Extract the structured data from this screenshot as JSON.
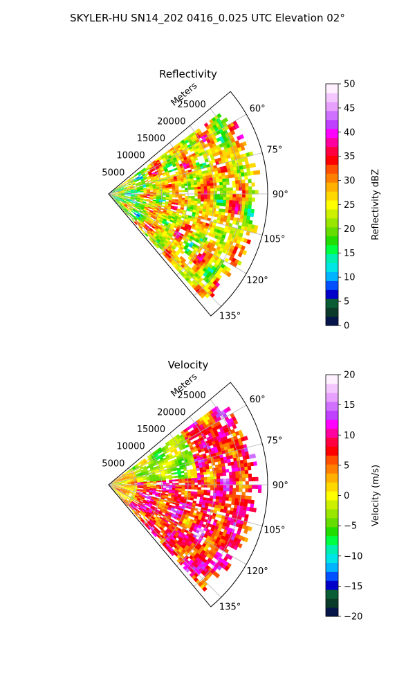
{
  "figure": {
    "title": "SKYLER-HU  SN14_202  0416_0.025 UTC Elevation 02°"
  },
  "chart_data": [
    {
      "type": "heatmap",
      "projection": "polar-sector",
      "title": "Reflectivity",
      "radial_label": "Meters",
      "radial_ticks": [
        "5000",
        "10000",
        "15000",
        "20000",
        "25000"
      ],
      "radial_tick_values": [
        5000,
        10000,
        15000,
        20000,
        25000
      ],
      "rlim": [
        0,
        30000
      ],
      "angle_ticks": [
        "60°",
        "75°",
        "90°",
        "105°",
        "120°",
        "135°"
      ],
      "angle_tick_values": [
        60,
        75,
        90,
        105,
        120,
        135
      ],
      "theta_range_deg": [
        50,
        140
      ],
      "grid": true,
      "colorbar": {
        "label": "Reflectivity dBZ",
        "ticks": [
          "0",
          "5",
          "10",
          "15",
          "20",
          "25",
          "30",
          "35",
          "40",
          "45",
          "50"
        ],
        "tick_values": [
          0,
          5,
          10,
          15,
          20,
          25,
          30,
          35,
          40,
          45,
          50
        ],
        "range": [
          0,
          50
        ],
        "colors": [
          "#06154a",
          "#0a3a2a",
          "#0a5c34",
          "#0000c8",
          "#0050ff",
          "#00b4ff",
          "#00e6e6",
          "#00f0b0",
          "#00ff40",
          "#22dd00",
          "#66dd00",
          "#99e600",
          "#ccf000",
          "#ffff00",
          "#ffd800",
          "#ffb000",
          "#ff8000",
          "#ff5000",
          "#ff0000",
          "#ff0040",
          "#ff00a0",
          "#ff00ff",
          "#c040ff",
          "#d070ff",
          "#e8a0ff",
          "#f4c8ff",
          "#fff0ff"
        ]
      }
    },
    {
      "type": "heatmap",
      "projection": "polar-sector",
      "title": "Velocity",
      "radial_label": "Meters",
      "radial_ticks": [
        "5000",
        "10000",
        "15000",
        "20000",
        "25000"
      ],
      "radial_tick_values": [
        5000,
        10000,
        15000,
        20000,
        25000
      ],
      "rlim": [
        0,
        30000
      ],
      "angle_ticks": [
        "60°",
        "75°",
        "90°",
        "105°",
        "120°",
        "135°"
      ],
      "angle_tick_values": [
        60,
        75,
        90,
        105,
        120,
        135
      ],
      "theta_range_deg": [
        50,
        140
      ],
      "grid": true,
      "colorbar": {
        "label": "Velocity (m/s)",
        "ticks": [
          "−20",
          "−15",
          "−10",
          "−5",
          "0",
          "5",
          "10",
          "15",
          "20"
        ],
        "tick_values": [
          -20,
          -15,
          -10,
          -5,
          0,
          5,
          10,
          15,
          20
        ],
        "range": [
          -20,
          20
        ],
        "colors": [
          "#06154a",
          "#0a3a2a",
          "#0a5c34",
          "#0000c8",
          "#0050ff",
          "#00b4ff",
          "#00e6e6",
          "#00f0b0",
          "#00ff40",
          "#22dd00",
          "#66dd00",
          "#99e600",
          "#ccf000",
          "#ffff00",
          "#ffd800",
          "#ffb000",
          "#ff8000",
          "#ff5000",
          "#ff0000",
          "#ff0040",
          "#ff00a0",
          "#ff00ff",
          "#c040ff",
          "#d070ff",
          "#e8a0ff",
          "#f4c8ff",
          "#fff0ff"
        ]
      }
    }
  ]
}
